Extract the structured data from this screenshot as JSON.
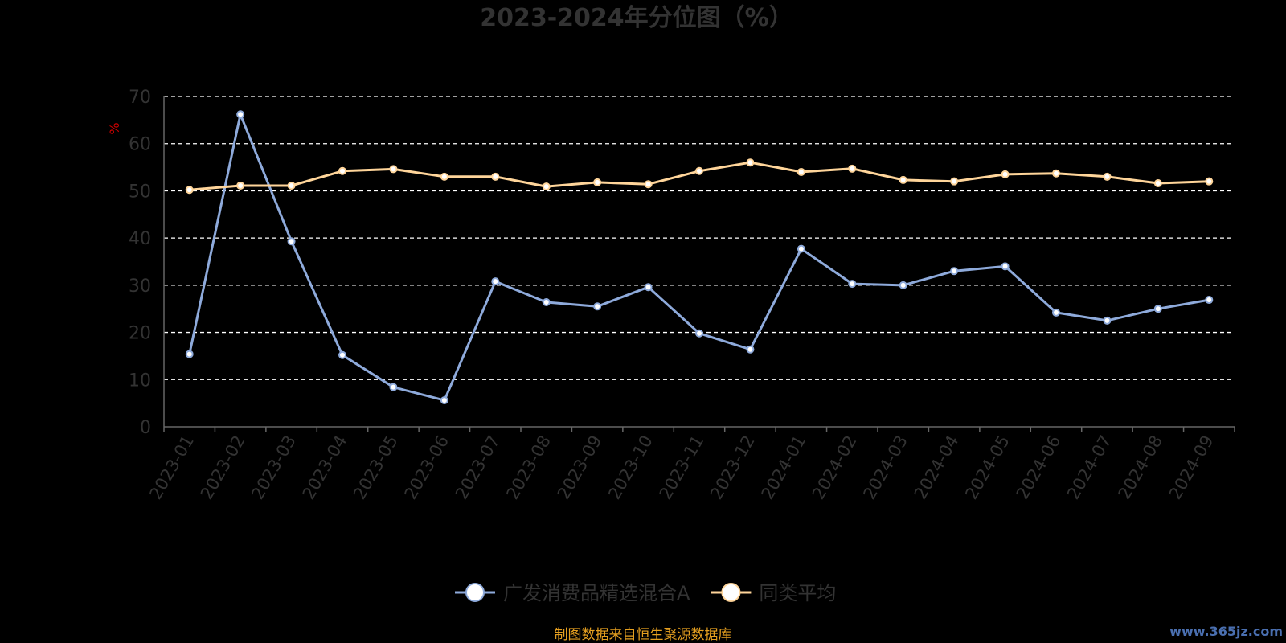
{
  "chart_data": {
    "type": "line",
    "title": "2023-2024年分位图（%）",
    "ylabel": "%",
    "ylim": [
      0,
      70
    ],
    "yticks": [
      0,
      10,
      20,
      30,
      40,
      50,
      60,
      70
    ],
    "grid": true,
    "legend_position": "bottom-center",
    "categories": [
      "2023-01",
      "2023-02",
      "2023-03",
      "2023-04",
      "2023-05",
      "2023-06",
      "2023-07",
      "2023-08",
      "2023-09",
      "2023-10",
      "2023-11",
      "2023-12",
      "2024-01",
      "2024-02",
      "2024-03",
      "2024-04",
      "2024-05",
      "2024-06",
      "2024-07",
      "2024-08",
      "2024-09"
    ],
    "series": [
      {
        "name": "广发消费品精选混合A",
        "color": "#8eaadb",
        "values": [
          15.4,
          66.2,
          39.3,
          15.2,
          8.4,
          5.6,
          30.8,
          26.4,
          25.5,
          29.6,
          19.8,
          16.4,
          37.7,
          30.3,
          30.0,
          33.0,
          34.0,
          24.2,
          22.5,
          25.0,
          26.9
        ]
      },
      {
        "name": "同类平均",
        "color": "#ffd59a",
        "values": [
          50.2,
          51.1,
          51.1,
          54.2,
          54.6,
          53.0,
          53.0,
          50.9,
          51.8,
          51.4,
          54.2,
          56.0,
          54.0,
          54.7,
          52.3,
          52.0,
          53.5,
          53.7,
          53.0,
          51.6,
          52.0
        ]
      }
    ]
  },
  "colors": {
    "ylabel": "#cc0000",
    "source": "#e6a020",
    "watermark": "#4a6fb0",
    "axis": "#666666",
    "grid": "#ffffff"
  },
  "footer": {
    "source": "制图数据来自恒生聚源数据库",
    "watermark": "www.365jz.com"
  }
}
